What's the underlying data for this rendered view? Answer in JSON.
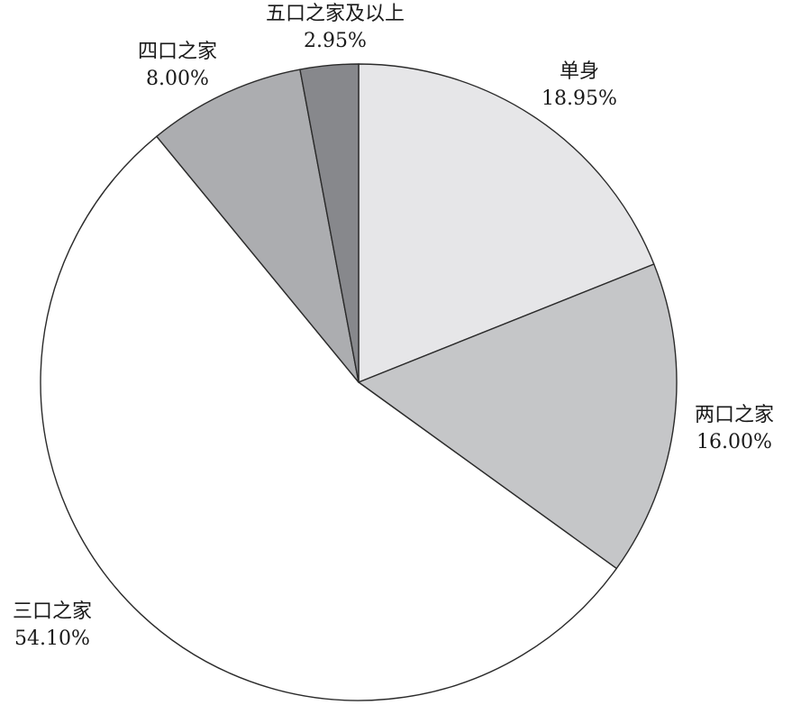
{
  "chart_data": {
    "type": "pie",
    "title": "",
    "slices": [
      {
        "label": "单身",
        "value": 18.95,
        "value_text": "18.95%",
        "color": "#e6e6e8"
      },
      {
        "label": "两口之家",
        "value": 16.0,
        "value_text": "16.00%",
        "color": "#c5c6c8"
      },
      {
        "label": "三口之家",
        "value": 54.1,
        "value_text": "54.10%",
        "color": "#ffffff"
      },
      {
        "label": "四口之家",
        "value": 8.0,
        "value_text": "8.00%",
        "color": "#acadb0"
      },
      {
        "label": "五口之家及以上",
        "value": 2.95,
        "value_text": "2.95%",
        "color": "#87888c"
      }
    ],
    "start": "12 o'clock",
    "direction": "clockwise",
    "legend": "none"
  }
}
